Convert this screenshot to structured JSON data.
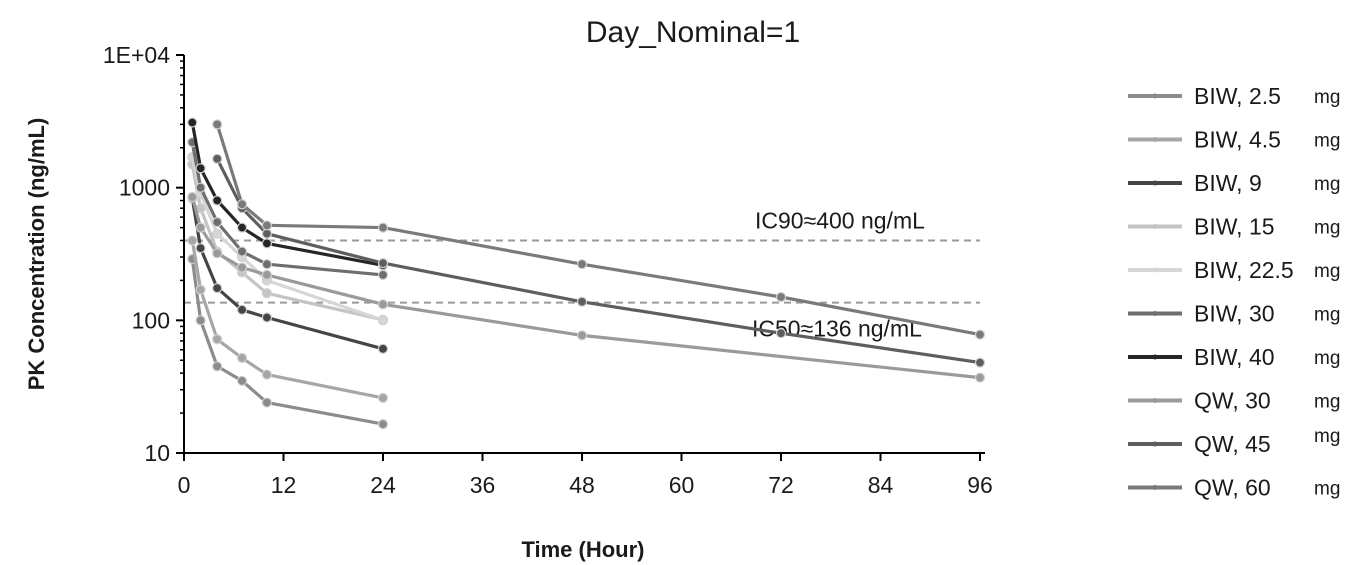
{
  "chart_data": {
    "type": "line",
    "title": "Day_Nominal=1",
    "xlabel": "Time (Hour)",
    "ylabel": "PK Concentration (ng/mL)",
    "y_scale": "log",
    "xlim": [
      0,
      96
    ],
    "ylim": [
      10,
      10000
    ],
    "x_ticks": [
      0,
      12,
      24,
      36,
      48,
      60,
      72,
      84,
      96
    ],
    "y_ticks": [
      {
        "value": 10,
        "label": "10"
      },
      {
        "value": 100,
        "label": "100"
      },
      {
        "value": 1000,
        "label": "1000"
      },
      {
        "value": 10000,
        "label": "1E+04"
      }
    ],
    "grid": false,
    "legend_position": "right",
    "reference_lines": [
      {
        "y": 400,
        "label": "IC90≈400 ng/mL",
        "color": "#9a9a9a"
      },
      {
        "y": 136,
        "label": "IC50≈136 ng/mL",
        "color": "#9a9a9a"
      }
    ],
    "series": [
      {
        "name": "BIW, 2.5",
        "unit": "mg",
        "color": "#8c8c8c",
        "x": [
          1,
          2,
          4,
          7,
          10,
          24
        ],
        "y": [
          290,
          100,
          45,
          35,
          24,
          16.5
        ]
      },
      {
        "name": "BIW, 4.5",
        "unit": "mg",
        "color": "#a6a6a6",
        "x": [
          1,
          2,
          4,
          7,
          10,
          24
        ],
        "y": [
          400,
          170,
          72,
          52,
          39,
          26
        ]
      },
      {
        "name": "BIW, 9",
        "unit": "mg",
        "color": "#454545",
        "x": [
          1,
          2,
          4,
          7,
          10,
          24
        ],
        "y": [
          830,
          350,
          175,
          120,
          105,
          61
        ]
      },
      {
        "name": "BIW, 15",
        "unit": "mg",
        "color": "#c4c4c4",
        "x": [
          1,
          2,
          4,
          7,
          10,
          24
        ],
        "y": [
          1500,
          700,
          330,
          230,
          160,
          101
        ]
      },
      {
        "name": "BIW, 22.5",
        "unit": "mg",
        "color": "#d6d6d6",
        "x": [
          1,
          2,
          4,
          7,
          10,
          24
        ],
        "y": [
          1700,
          900,
          450,
          300,
          200,
          100
        ]
      },
      {
        "name": "BIW, 30",
        "unit": "mg",
        "color": "#6e6e6e",
        "x": [
          1,
          2,
          4,
          7,
          10,
          24
        ],
        "y": [
          2200,
          1000,
          550,
          330,
          265,
          220
        ]
      },
      {
        "name": "BIW, 40",
        "unit": "mg",
        "color": "#262626",
        "x": [
          1,
          2,
          4,
          7,
          10,
          24
        ],
        "y": [
          3100,
          1400,
          800,
          500,
          380,
          260
        ]
      },
      {
        "name": "QW, 30",
        "unit": "mg",
        "color": "#9a9a9a",
        "x": [
          1,
          2,
          4,
          7,
          10,
          24,
          48,
          96
        ],
        "y": [
          850,
          500,
          320,
          250,
          220,
          132,
          77,
          37
        ]
      },
      {
        "name": "QW, 45",
        "unit": "mg",
        "color": "#5e5e5e",
        "x": [
          4,
          7,
          10,
          24,
          48,
          72,
          96
        ],
        "y": [
          1650,
          700,
          450,
          270,
          138,
          80,
          48
        ]
      },
      {
        "name": "QW, 60",
        "unit": "mg",
        "color": "#7a7a7a",
        "x": [
          4,
          7,
          10,
          24,
          48,
          72,
          96
        ],
        "y": [
          3000,
          750,
          520,
          500,
          265,
          150,
          78
        ]
      }
    ]
  }
}
